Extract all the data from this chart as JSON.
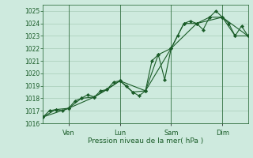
{
  "xlabel": "Pression niveau de la mer( hPa )",
  "background_color": "#ceeade",
  "grid_color": "#a8cdb8",
  "line_color": "#1a5c28",
  "ylim": [
    1016,
    1025.5
  ],
  "yticks": [
    1016,
    1017,
    1018,
    1019,
    1020,
    1021,
    1022,
    1023,
    1024,
    1025
  ],
  "xlim": [
    0,
    96
  ],
  "day_ticks": [
    12,
    36,
    60,
    84
  ],
  "day_labels": [
    "Ven",
    "Lun",
    "Sam",
    "Dim"
  ],
  "series1_x": [
    0,
    3,
    6,
    9,
    12,
    15,
    18,
    21,
    24,
    27,
    30,
    33,
    36,
    39,
    42,
    45,
    48,
    51,
    54,
    57,
    60,
    63,
    66,
    69,
    72,
    75,
    78,
    81,
    84,
    87,
    90,
    93,
    96
  ],
  "series1_y": [
    1016.5,
    1017.0,
    1017.1,
    1017.0,
    1017.2,
    1017.8,
    1018.0,
    1018.3,
    1018.1,
    1018.6,
    1018.7,
    1019.3,
    1019.4,
    1019.0,
    1018.5,
    1018.2,
    1018.6,
    1021.0,
    1021.5,
    1019.5,
    1022.0,
    1023.0,
    1024.0,
    1024.2,
    1024.0,
    1023.5,
    1024.5,
    1025.0,
    1024.5,
    1024.0,
    1023.0,
    1023.8,
    1023.0
  ],
  "series2_x": [
    0,
    6,
    12,
    18,
    24,
    30,
    36,
    42,
    48,
    54,
    60,
    66,
    72,
    78,
    84,
    90,
    96
  ],
  "series2_y": [
    1016.5,
    1017.1,
    1017.2,
    1018.0,
    1018.1,
    1018.7,
    1019.4,
    1018.5,
    1018.6,
    1021.5,
    1022.0,
    1024.0,
    1024.0,
    1024.5,
    1024.5,
    1023.0,
    1023.0
  ],
  "series3_x": [
    0,
    12,
    24,
    36,
    48,
    60,
    72,
    84,
    96
  ],
  "series3_y": [
    1016.5,
    1017.2,
    1018.1,
    1019.4,
    1018.6,
    1022.0,
    1024.0,
    1024.5,
    1023.0
  ]
}
